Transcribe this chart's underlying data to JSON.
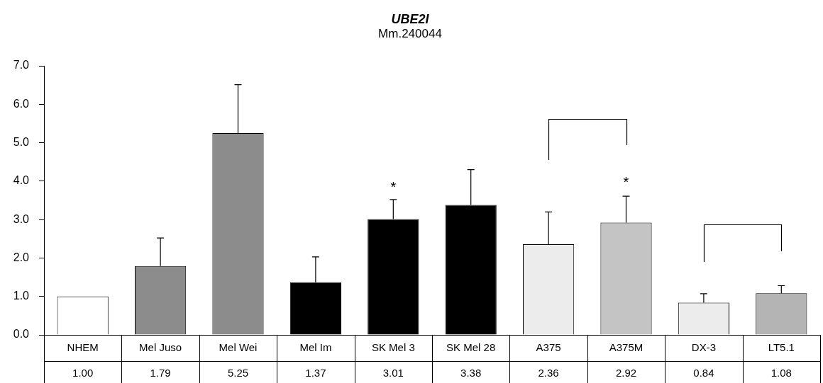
{
  "chart_data": {
    "type": "bar",
    "title": "UBE2I",
    "subtitle": "Mm.240044",
    "categories": [
      "NHEM",
      "Mel Juso",
      "Mel Wei",
      "Mel Im",
      "SK Mel 3",
      "SK Mel 28",
      "A375",
      "A375M",
      "DX-3",
      "LT5.1"
    ],
    "values": [
      1.0,
      1.79,
      5.25,
      1.37,
      3.01,
      3.38,
      2.36,
      2.92,
      0.84,
      1.08
    ],
    "colors": [
      "#ffffff",
      "#8c8c8c",
      "#8c8c8c",
      "#000000",
      "#000000",
      "#000000",
      "#ececec",
      "#c4c4c4",
      "#ececec",
      "#b4b4b4"
    ],
    "errors": [
      null,
      [
        1.79,
        2.52
      ],
      [
        5.25,
        6.51
      ],
      [
        1.37,
        2.03
      ],
      [
        3.01,
        3.52
      ],
      [
        3.38,
        4.3
      ],
      [
        2.36,
        3.2
      ],
      [
        2.92,
        3.61
      ],
      [
        0.84,
        1.07
      ],
      [
        1.08,
        1.28
      ]
    ],
    "value_labels": [
      "1.00",
      "1.79",
      "5.25",
      "1.37",
      "3.01",
      "3.38",
      "2.36",
      "2.92",
      "0.84",
      "1.08"
    ],
    "ylim": [
      0,
      7
    ],
    "yticks": [
      {
        "value": 0,
        "label": "0.0"
      },
      {
        "value": 1,
        "label": "1.0"
      },
      {
        "value": 2,
        "label": "2.0"
      },
      {
        "value": 3,
        "label": "3.0"
      },
      {
        "value": 4,
        "label": "4.0"
      },
      {
        "value": 5,
        "label": "5.0"
      },
      {
        "value": 6,
        "label": "6.0"
      },
      {
        "value": 7,
        "label": "7.0"
      }
    ],
    "annotations": [
      "*",
      "*"
    ]
  }
}
